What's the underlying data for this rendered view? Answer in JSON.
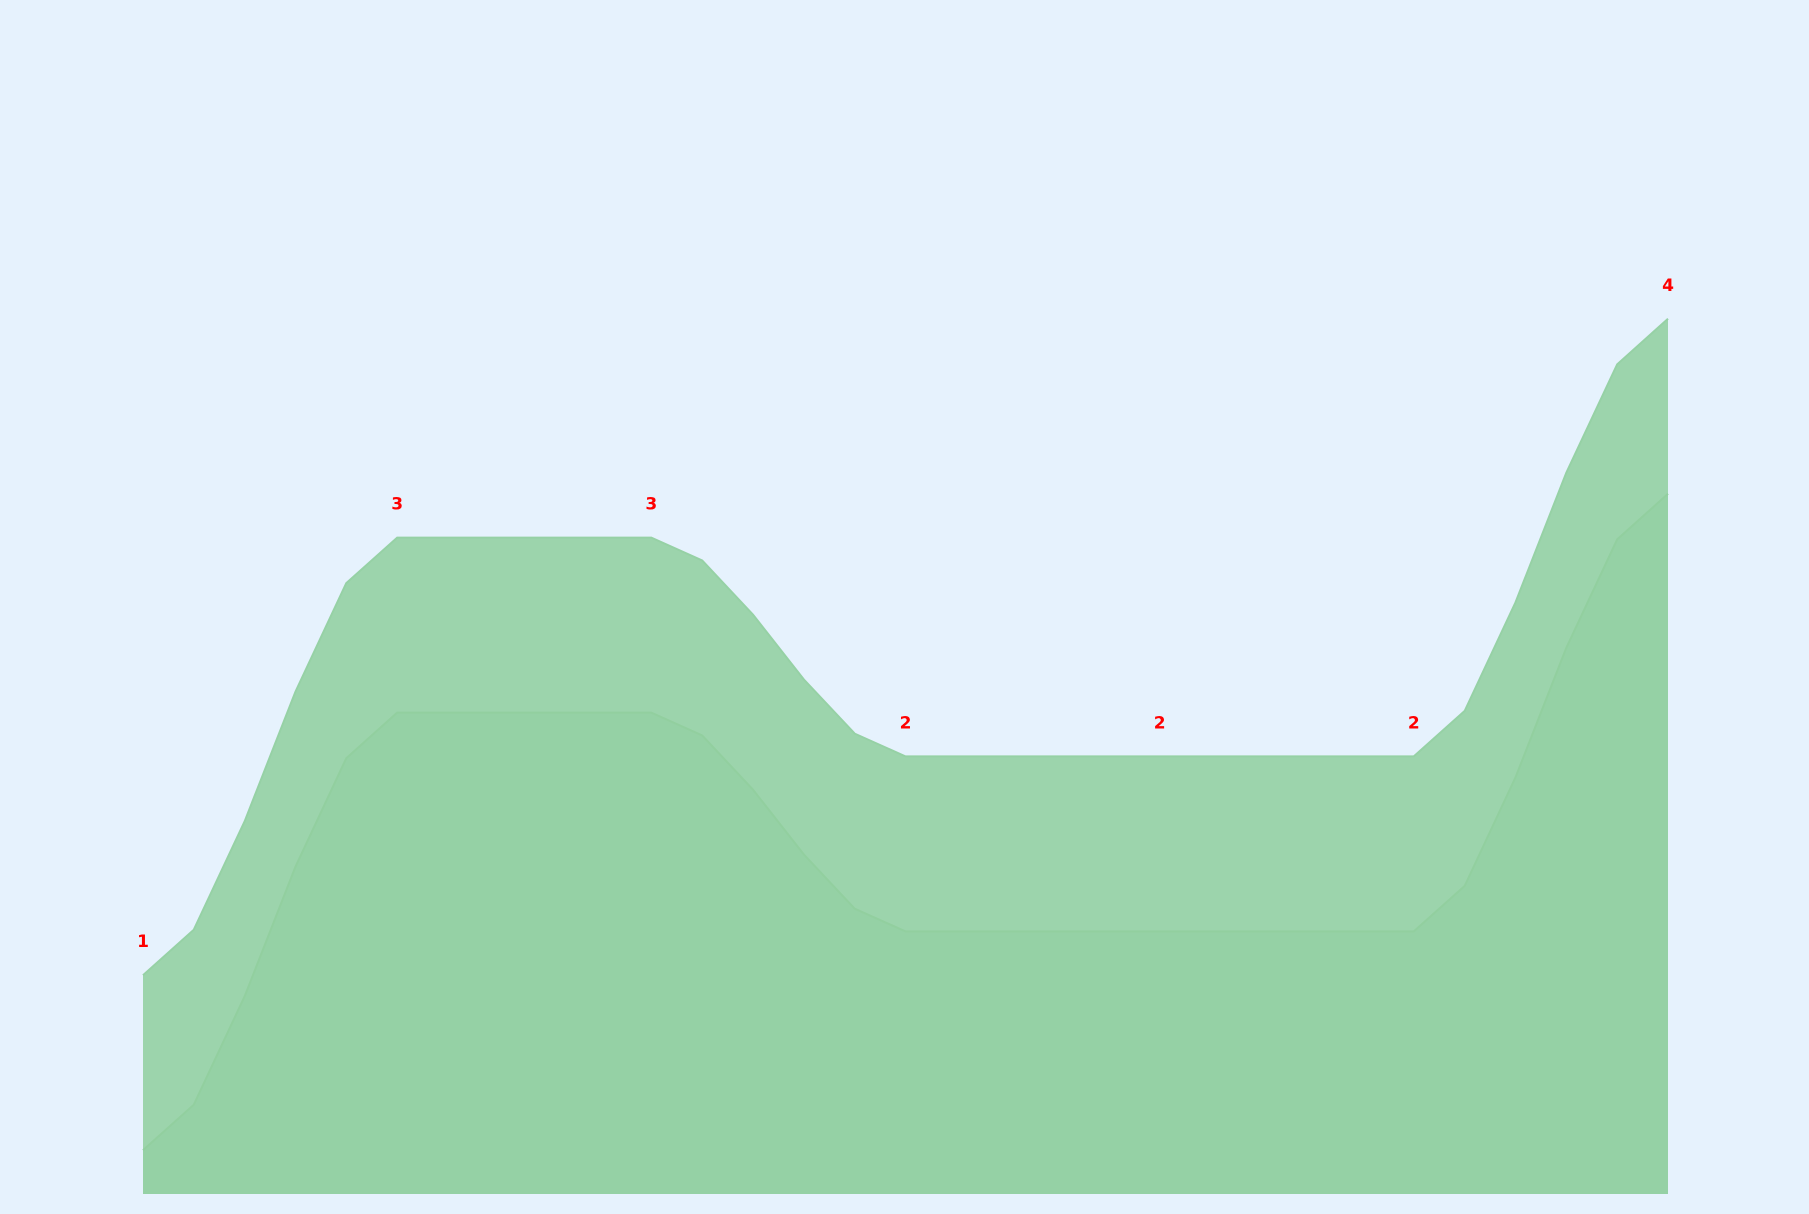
{
  "chart_data": {
    "type": "area",
    "title": "",
    "xlabel": "",
    "ylabel": "",
    "x": [
      0,
      1,
      2,
      3,
      4,
      5,
      6
    ],
    "ylim": [
      0,
      5
    ],
    "grid": false,
    "legend": "none",
    "series": [
      {
        "values": [
          0.2,
          2.2,
          2.2,
          1.2,
          1.2,
          1.2,
          3.2
        ],
        "color": "#92cf9f"
      },
      {
        "values": [
          1,
          3,
          3,
          2,
          2,
          2,
          4
        ],
        "labels": [
          "1",
          "3",
          "3",
          "2",
          "2",
          "2",
          "4"
        ],
        "color": "#96d1a5"
      }
    ],
    "label_color": "#ff0000",
    "background": "#e6f2fd"
  }
}
